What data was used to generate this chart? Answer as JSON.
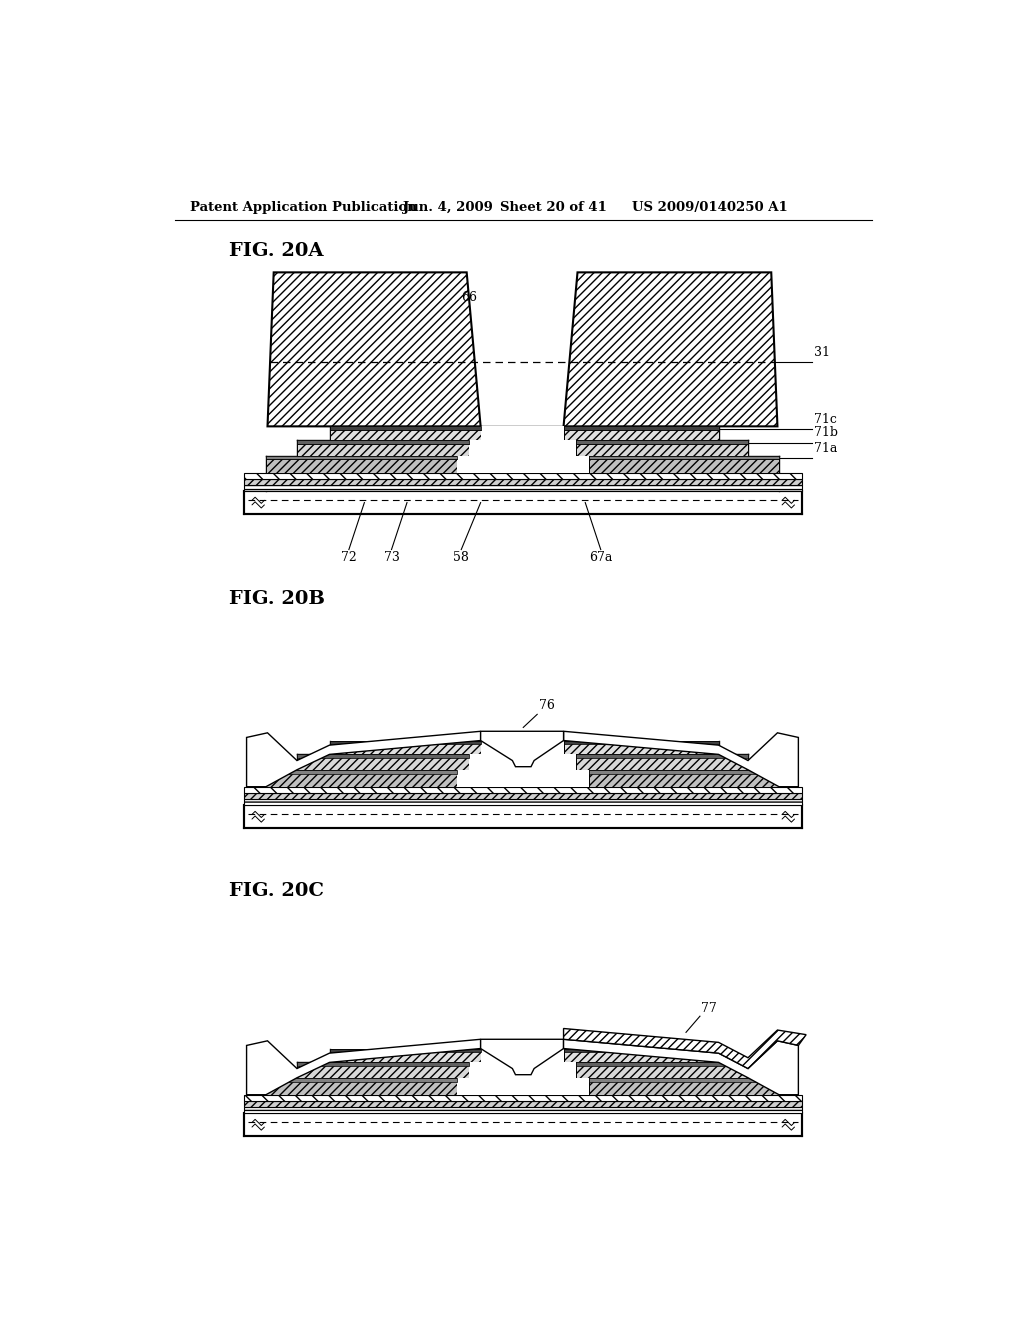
{
  "title_header": "Patent Application Publication",
  "date_header": "Jun. 4, 2009",
  "sheet_header": "Sheet 20 of 41",
  "patent_header": "US 2009/0140250 A1",
  "bg_color": "#ffffff",
  "line_color": "#000000"
}
